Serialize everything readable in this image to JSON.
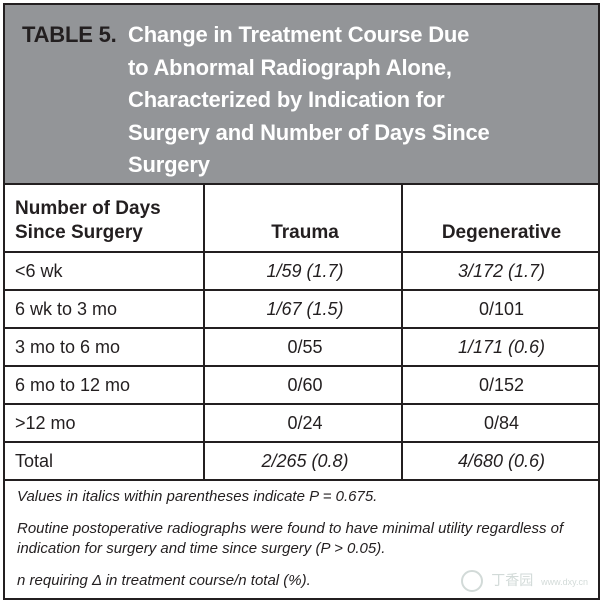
{
  "table": {
    "label": "TABLE 5.",
    "title_lines": [
      "Change in Treatment Course Due",
      "to Abnormal Radiograph Alone,",
      "Characterized by Indication for",
      "Surgery and Number of Days Since",
      "Surgery"
    ],
    "headers": {
      "days_lines": [
        "Number of Days",
        "Since Surgery"
      ],
      "trauma": "Trauma",
      "degenerative": "Degenerative"
    },
    "rows": [
      {
        "days": "<6 wk",
        "trauma": "1/59 (1.7)",
        "trauma_italic": true,
        "degenerative": "3/172 (1.7)",
        "degenerative_italic": true
      },
      {
        "days": "6 wk to 3 mo",
        "trauma": "1/67 (1.5)",
        "trauma_italic": true,
        "degenerative": "0/101",
        "degenerative_italic": false
      },
      {
        "days": "3 mo to 6 mo",
        "trauma": "0/55",
        "trauma_italic": false,
        "degenerative": "1/171 (0.6)",
        "degenerative_italic": true
      },
      {
        "days": "6 mo to 12 mo",
        "trauma": "0/60",
        "trauma_italic": false,
        "degenerative": "0/152",
        "degenerative_italic": false
      },
      {
        "days": ">12 mo",
        "trauma": "0/24",
        "trauma_italic": false,
        "degenerative": "0/84",
        "degenerative_italic": false
      },
      {
        "days": "Total",
        "trauma": "2/265 (0.8)",
        "trauma_italic": true,
        "degenerative": "4/680 (0.6)",
        "degenerative_italic": true
      }
    ],
    "footnotes": [
      "Values in italics within parentheses indicate P = 0.675.",
      "Routine postoperative radiographs were found to have minimal utility regardless of indication for surgery and time since surgery (P > 0.05).",
      "n requiring Δ in treatment course/n total (%)."
    ]
  },
  "watermark": {
    "text": "丁香园",
    "sub": "www.dxy.cn"
  },
  "colors": {
    "title_band": "#939598",
    "border": "#231f20",
    "title_text": "#ffffff"
  }
}
